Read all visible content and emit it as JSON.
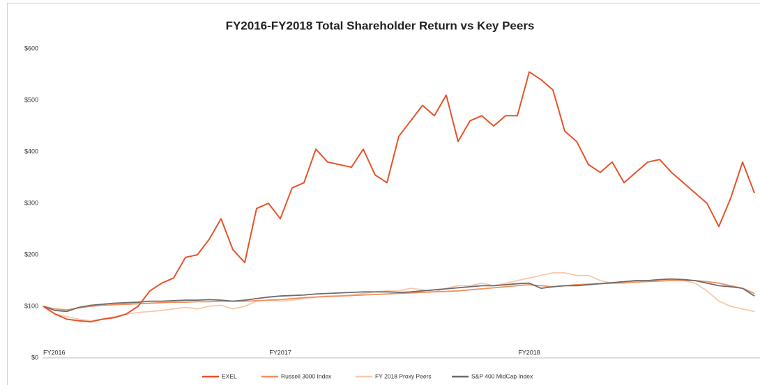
{
  "chart_data": {
    "type": "line",
    "title": "FY2016-FY2018 Total Shareholder Return vs Key Peers",
    "categories": [
      "FY2016",
      null,
      null,
      null,
      null,
      null,
      null,
      null,
      null,
      null,
      null,
      null,
      null,
      null,
      null,
      null,
      null,
      null,
      null,
      null,
      "FY2017",
      null,
      null,
      null,
      null,
      null,
      null,
      null,
      null,
      null,
      null,
      null,
      null,
      null,
      null,
      null,
      null,
      null,
      null,
      null,
      null,
      "FY2018",
      null,
      null,
      null,
      null,
      null,
      null,
      null,
      null,
      null,
      null,
      null,
      null,
      null,
      null,
      null,
      null,
      null,
      null,
      null
    ],
    "series": [
      {
        "name": "FY 2018 Proxy Peers",
        "color": "#f8c8ab",
        "values": [
          100,
          85,
          80,
          75,
          72,
          75,
          80,
          85,
          88,
          90,
          92,
          95,
          98,
          95,
          100,
          102,
          95,
          100,
          110,
          112,
          110,
          112,
          115,
          118,
          120,
          120,
          122,
          125,
          128,
          130,
          130,
          135,
          132,
          128,
          135,
          140,
          140,
          145,
          140,
          145,
          150,
          155,
          160,
          165,
          165,
          160,
          160,
          150,
          145,
          145,
          148,
          150,
          150,
          152,
          150,
          145,
          130,
          110,
          100,
          95,
          90
        ]
      },
      {
        "name": "Russell 3000 Index",
        "color": "#f0905c",
        "values": [
          100,
          95,
          93,
          97,
          100,
          102,
          103,
          104,
          105,
          106,
          107,
          108,
          108,
          109,
          109,
          110,
          110,
          110,
          111,
          112,
          113,
          115,
          117,
          118,
          119,
          120,
          121,
          122,
          123,
          124,
          125,
          126,
          127,
          128,
          129,
          130,
          132,
          134,
          136,
          138,
          140,
          142,
          140,
          138,
          140,
          142,
          143,
          144,
          145,
          146,
          147,
          148,
          149,
          150,
          150,
          150,
          148,
          145,
          140,
          135,
          125
        ]
      },
      {
        "name": "S&P 400 MidCap Index",
        "color": "#6b6b6b",
        "values": [
          100,
          92,
          90,
          98,
          102,
          104,
          106,
          107,
          108,
          110,
          110,
          111,
          112,
          112,
          113,
          112,
          110,
          112,
          115,
          118,
          120,
          121,
          122,
          124,
          125,
          126,
          127,
          128,
          128,
          128,
          127,
          128,
          130,
          132,
          134,
          136,
          138,
          140,
          140,
          142,
          144,
          145,
          135,
          138,
          140,
          140,
          142,
          144,
          146,
          148,
          150,
          150,
          152,
          153,
          152,
          150,
          145,
          140,
          138,
          135,
          120
        ]
      },
      {
        "name": "EXEL",
        "color": "#e5532a",
        "values": [
          100,
          85,
          75,
          72,
          70,
          75,
          78,
          85,
          100,
          130,
          145,
          155,
          195,
          200,
          230,
          270,
          210,
          185,
          290,
          300,
          270,
          330,
          340,
          405,
          380,
          375,
          370,
          405,
          355,
          340,
          430,
          460,
          490,
          470,
          510,
          420,
          460,
          470,
          450,
          470,
          470,
          555,
          540,
          520,
          440,
          420,
          375,
          360,
          380,
          340,
          360,
          380,
          385,
          360,
          340,
          320,
          300,
          255,
          310,
          380,
          320
        ]
      }
    ],
    "legend_order": [
      3,
      1,
      0,
      2
    ],
    "ylim": [
      0,
      600
    ],
    "yticks": [
      {
        "value": 0,
        "label": "$0"
      },
      {
        "value": 100,
        "label": "$100"
      },
      {
        "value": 200,
        "label": "$200"
      },
      {
        "value": 300,
        "label": "$300"
      },
      {
        "value": 400,
        "label": "$400"
      },
      {
        "value": 500,
        "label": "$500"
      },
      {
        "value": 600,
        "label": "$600"
      }
    ]
  }
}
